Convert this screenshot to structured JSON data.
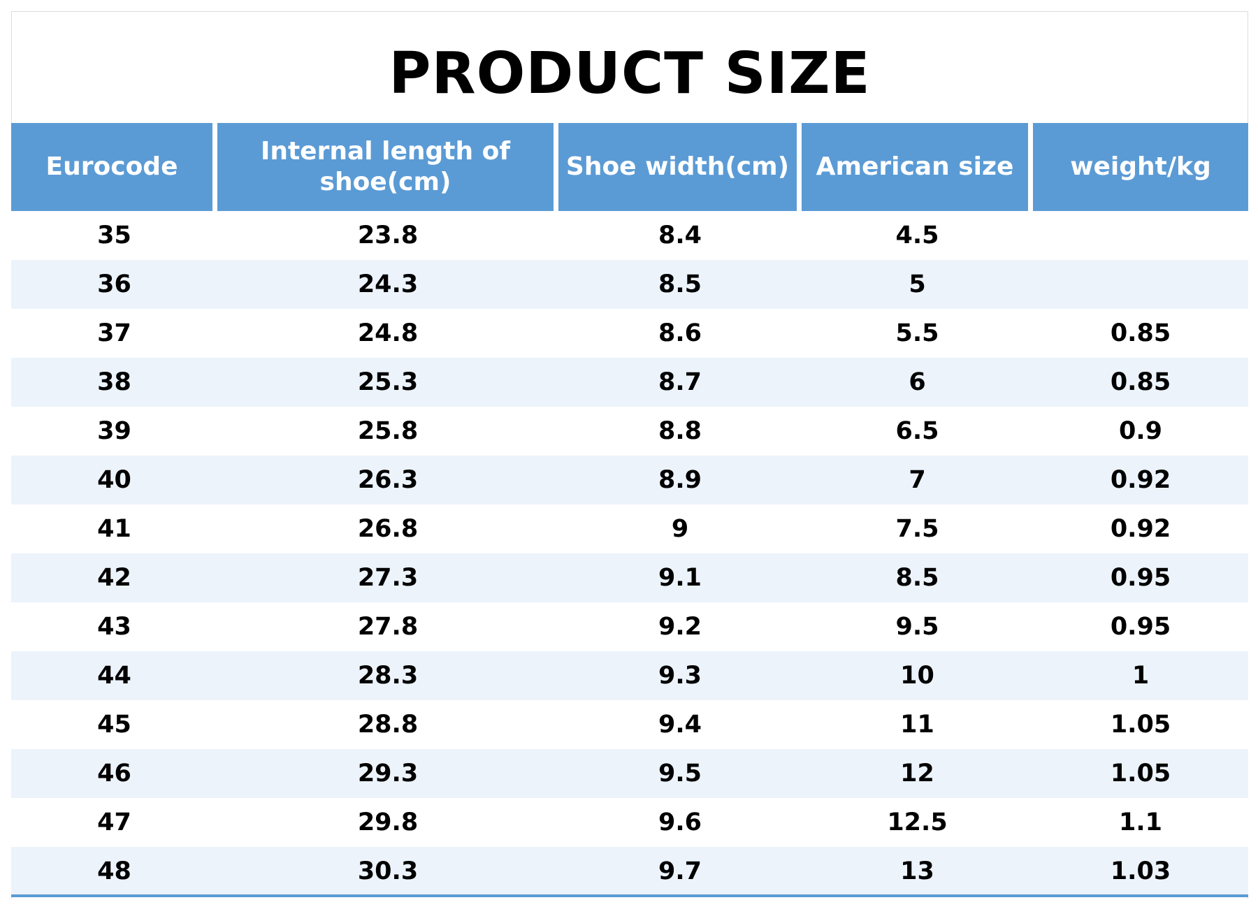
{
  "title": "PRODUCT SIZE",
  "table": {
    "headers": [
      "Eurocode",
      "Internal length of shoe(cm)",
      "Shoe width(cm)",
      "American size",
      "weight/kg"
    ],
    "rows": [
      [
        "35",
        "23.8",
        "8.4",
        "4.5",
        ""
      ],
      [
        "36",
        "24.3",
        "8.5",
        "5",
        ""
      ],
      [
        "37",
        "24.8",
        "8.6",
        "5.5",
        "0.85"
      ],
      [
        "38",
        "25.3",
        "8.7",
        "6",
        "0.85"
      ],
      [
        "39",
        "25.8",
        "8.8",
        "6.5",
        "0.9"
      ],
      [
        "40",
        "26.3",
        "8.9",
        "7",
        "0.92"
      ],
      [
        "41",
        "26.8",
        "9",
        "7.5",
        "0.92"
      ],
      [
        "42",
        "27.3",
        "9.1",
        "8.5",
        "0.95"
      ],
      [
        "43",
        "27.8",
        "9.2",
        "9.5",
        "0.95"
      ],
      [
        "44",
        "28.3",
        "9.3",
        "10",
        "1"
      ],
      [
        "45",
        "28.8",
        "9.4",
        "11",
        "1.05"
      ],
      [
        "46",
        "29.3",
        "9.5",
        "12",
        "1.05"
      ],
      [
        "47",
        "29.8",
        "9.6",
        "12.5",
        "1.1"
      ],
      [
        "48",
        "30.3",
        "9.7",
        "13",
        "1.03"
      ]
    ]
  },
  "colors": {
    "header_background": "#5b9bd5",
    "header_text": "#ffffff",
    "stripe_row": "#ecf3fb",
    "plain_row": "#ffffff",
    "bottom_rule": "#5b9bd5"
  }
}
